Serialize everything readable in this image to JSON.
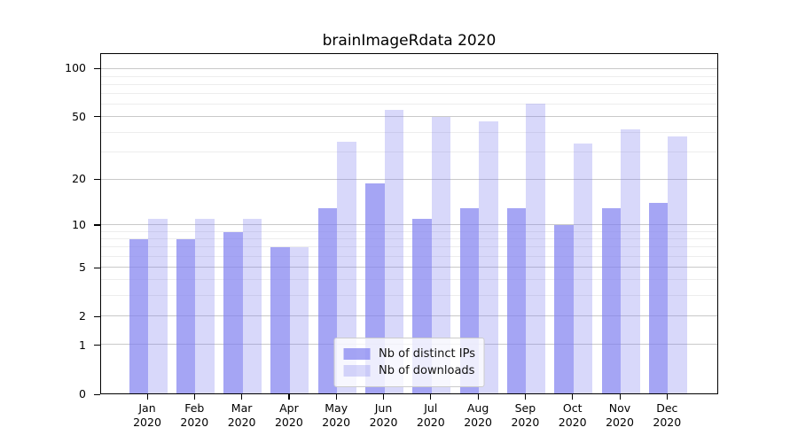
{
  "chart_data": {
    "type": "bar",
    "title": "brainImageRdata 2020",
    "categories": [
      "Jan",
      "Feb",
      "Mar",
      "Apr",
      "May",
      "Jun",
      "Jul",
      "Aug",
      "Sep",
      "Oct",
      "Nov",
      "Dec"
    ],
    "category_year_label": "2020",
    "series": [
      {
        "name": "Nb of distinct IPs",
        "color": "rgba(127,127,239,0.7)",
        "values": [
          8,
          8,
          9,
          7,
          13,
          19,
          11,
          13,
          13,
          10,
          13,
          14
        ]
      },
      {
        "name": "Nb of downloads",
        "color": "rgba(127,127,239,0.3)",
        "values": [
          11,
          11,
          11,
          7,
          35,
          56,
          50,
          47,
          61,
          34,
          42,
          38
        ]
      }
    ],
    "xlabel": "",
    "ylabel": "",
    "y_axis": {
      "scale": "log1p",
      "tick_labels": [
        0,
        1,
        2,
        5,
        10,
        20,
        50,
        100
      ],
      "minor_gridlines": [
        3,
        4,
        6,
        7,
        8,
        9,
        30,
        40,
        60,
        70,
        80,
        90
      ],
      "axis_max": 124.6
    },
    "grid": true,
    "legend_position": "lower center"
  },
  "colors": {
    "bar_dark": "rgba(127,127,239,0.7)",
    "bar_light": "rgba(127,127,239,0.3)",
    "gridline_major": "#c9c9c9",
    "gridline_minor": "#ededed",
    "axis": "#000000",
    "background": "#ffffff"
  }
}
